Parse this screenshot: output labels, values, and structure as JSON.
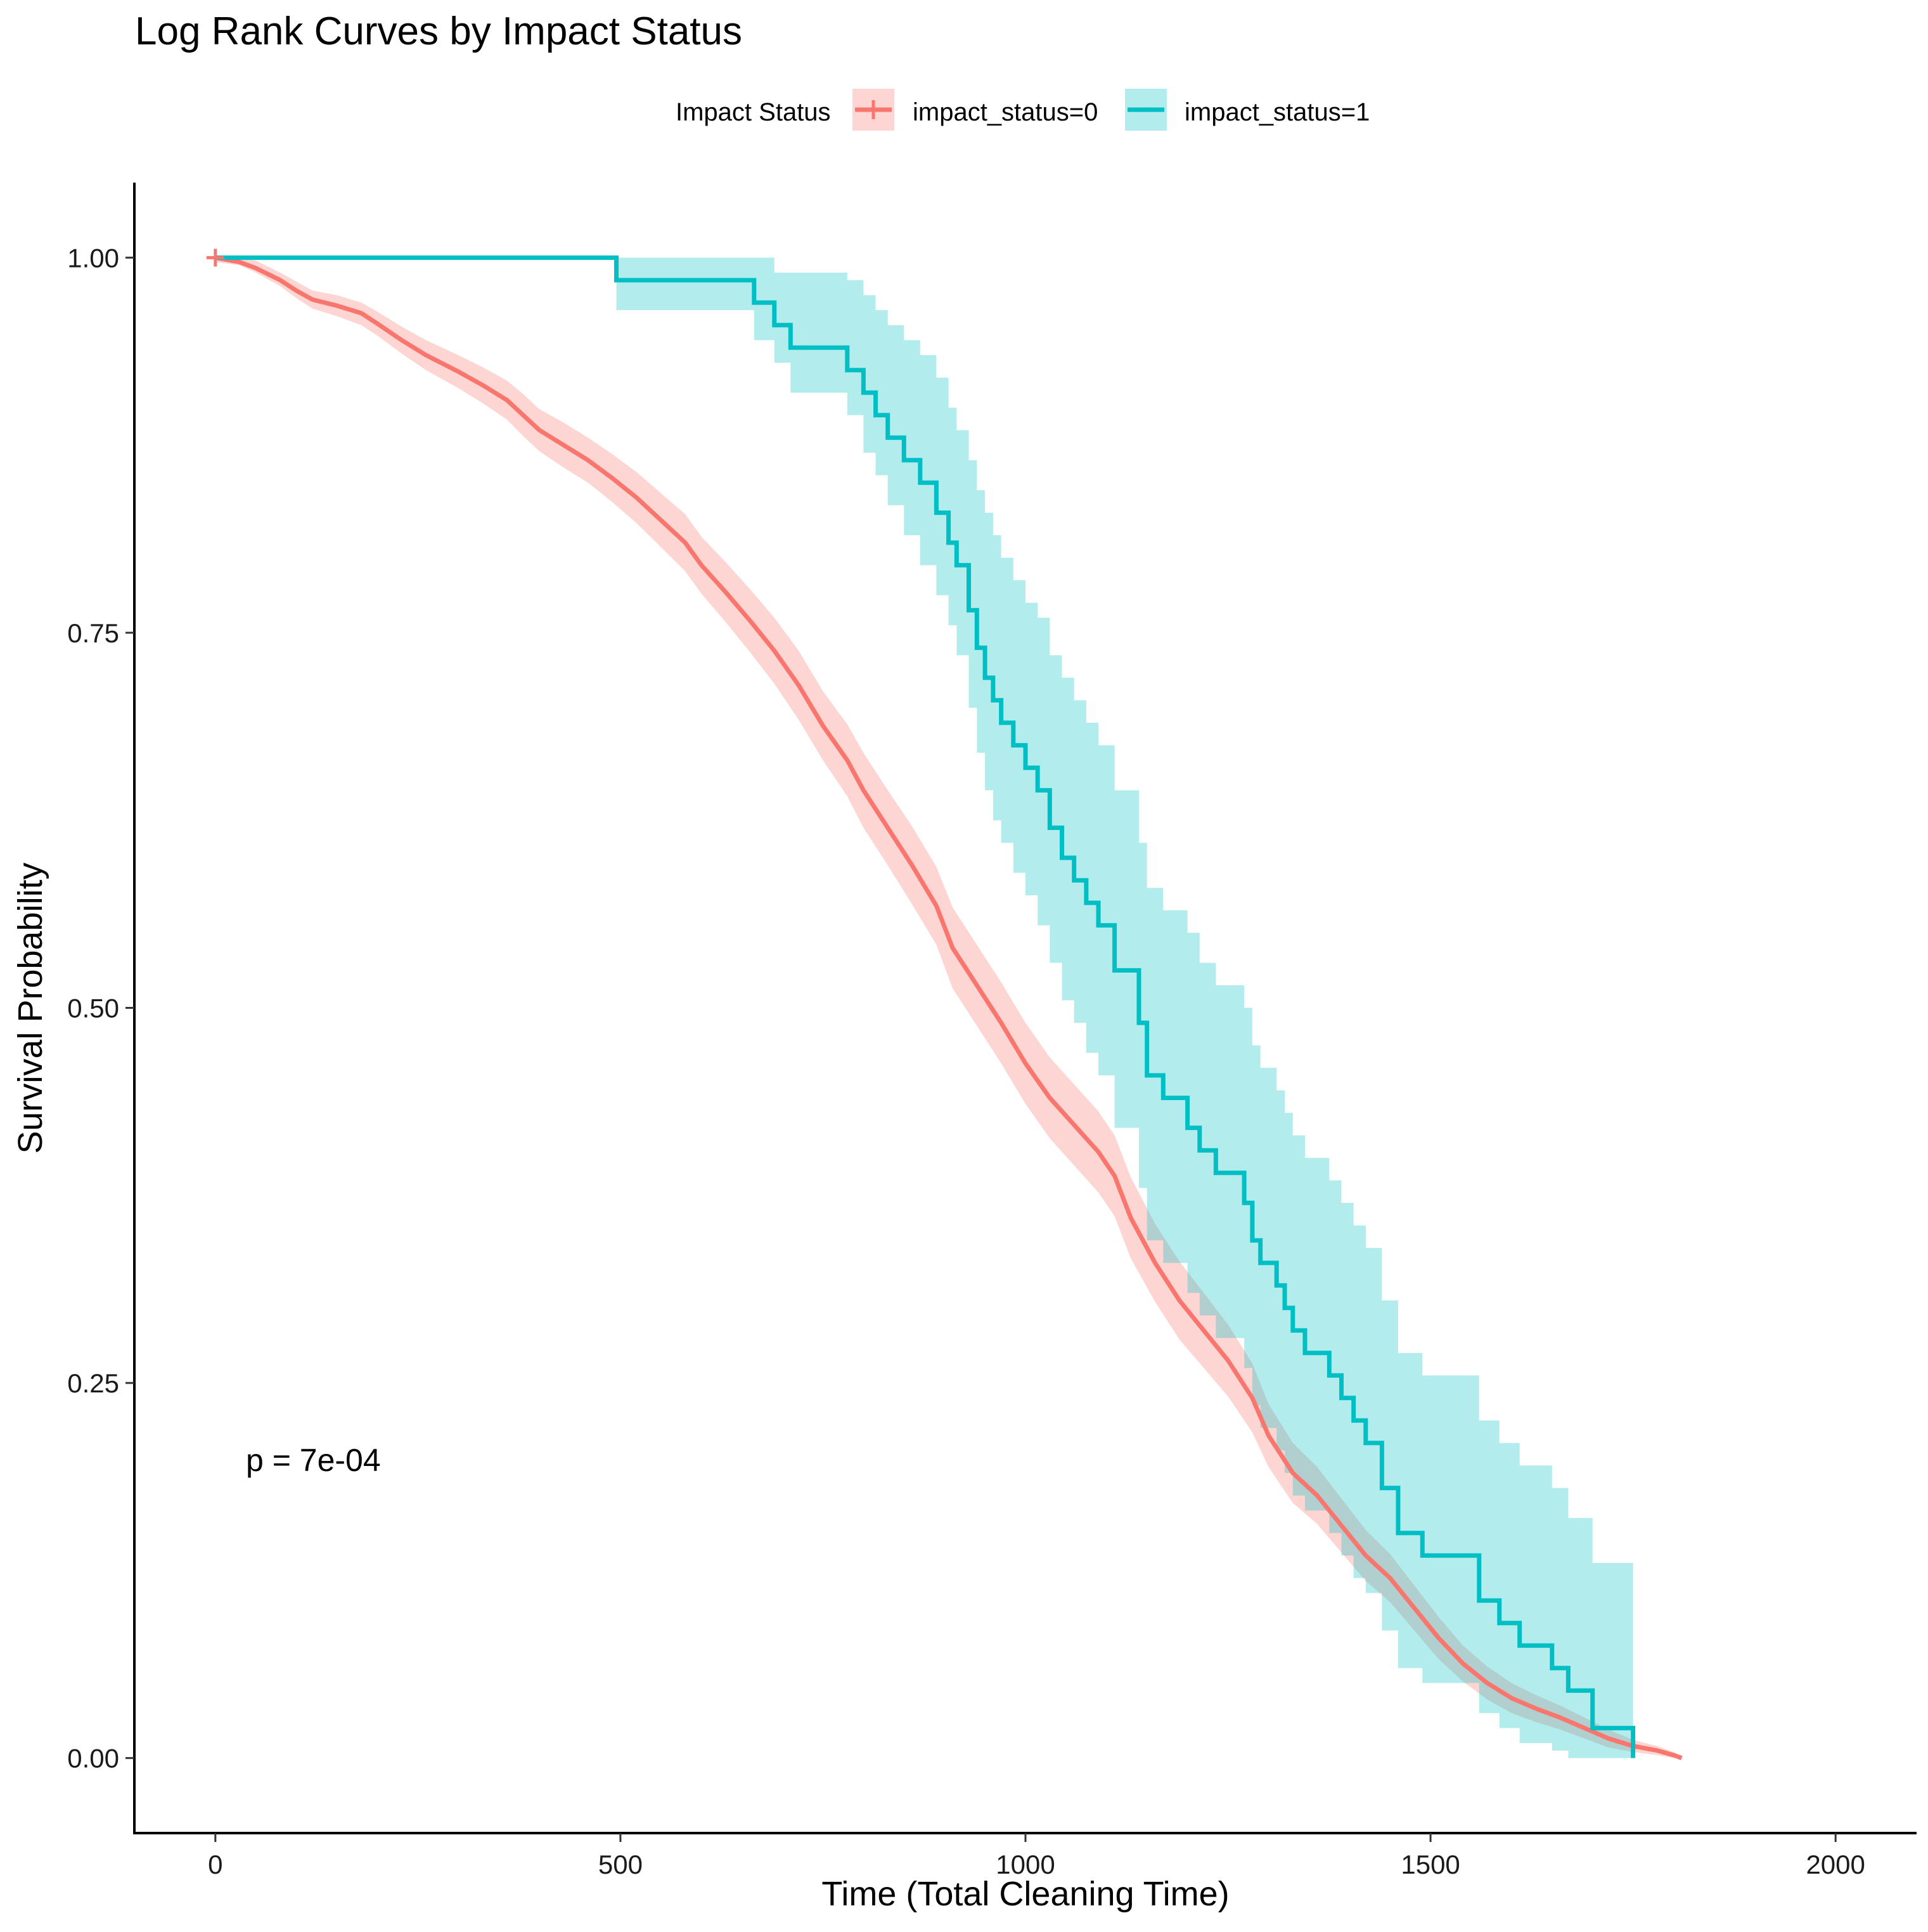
{
  "chart_data": {
    "type": "line",
    "subtype": "kaplan-meier step curves with confidence bands",
    "title": "Log Rank Curves by Impact Status",
    "xlabel": "Time (Total Cleaning Time)",
    "ylabel": "Survival Probability",
    "xlim": [
      -100,
      2100
    ],
    "ylim": [
      -0.05,
      1.05
    ],
    "x_ticks": [
      0,
      500,
      1000,
      1500,
      2000
    ],
    "x_tick_labels": [
      "0",
      "500",
      "1000",
      "1500",
      "2000"
    ],
    "y_ticks": [
      0.0,
      0.25,
      0.5,
      0.75,
      1.0
    ],
    "y_tick_labels": [
      "0.00",
      "0.25",
      "0.50",
      "0.75",
      "1.00"
    ],
    "grid": false,
    "legend": {
      "title": "Impact Status",
      "position": "top"
    },
    "annotation": "p = 7e-04",
    "colors": {
      "series0": "#F8766D",
      "series1": "#00BFC4"
    },
    "series": [
      {
        "name": "impact_status=0",
        "color": "#F8766D",
        "censor_mark": [
          0,
          1.0
        ],
        "points": [
          [
            0,
            1.0
          ],
          [
            30,
            0.997
          ],
          [
            50,
            0.993
          ],
          [
            80,
            0.985
          ],
          [
            100,
            0.978
          ],
          [
            120,
            0.972
          ],
          [
            150,
            0.968
          ],
          [
            180,
            0.963
          ],
          [
            200,
            0.956
          ],
          [
            230,
            0.945
          ],
          [
            260,
            0.935
          ],
          [
            300,
            0.924
          ],
          [
            330,
            0.915
          ],
          [
            360,
            0.905
          ],
          [
            380,
            0.895
          ],
          [
            400,
            0.885
          ],
          [
            430,
            0.875
          ],
          [
            460,
            0.865
          ],
          [
            490,
            0.853
          ],
          [
            520,
            0.84
          ],
          [
            550,
            0.825
          ],
          [
            580,
            0.81
          ],
          [
            600,
            0.795
          ],
          [
            630,
            0.777
          ],
          [
            660,
            0.758
          ],
          [
            690,
            0.738
          ],
          [
            720,
            0.715
          ],
          [
            750,
            0.688
          ],
          [
            780,
            0.665
          ],
          [
            800,
            0.645
          ],
          [
            830,
            0.62
          ],
          [
            860,
            0.595
          ],
          [
            890,
            0.568
          ],
          [
            910,
            0.54
          ],
          [
            940,
            0.515
          ],
          [
            970,
            0.49
          ],
          [
            1000,
            0.463
          ],
          [
            1030,
            0.44
          ],
          [
            1060,
            0.422
          ],
          [
            1090,
            0.404
          ],
          [
            1110,
            0.388
          ],
          [
            1130,
            0.36
          ],
          [
            1160,
            0.33
          ],
          [
            1190,
            0.305
          ],
          [
            1220,
            0.285
          ],
          [
            1250,
            0.265
          ],
          [
            1280,
            0.24
          ],
          [
            1300,
            0.215
          ],
          [
            1330,
            0.19
          ],
          [
            1360,
            0.175
          ],
          [
            1390,
            0.155
          ],
          [
            1420,
            0.135
          ],
          [
            1450,
            0.12
          ],
          [
            1480,
            0.1
          ],
          [
            1510,
            0.08
          ],
          [
            1540,
            0.063
          ],
          [
            1570,
            0.05
          ],
          [
            1600,
            0.04
          ],
          [
            1630,
            0.033
          ],
          [
            1660,
            0.027
          ],
          [
            1690,
            0.02
          ],
          [
            1720,
            0.013
          ],
          [
            1750,
            0.008
          ],
          [
            1780,
            0.005
          ],
          [
            1800,
            0.002
          ],
          [
            1810,
            0.0
          ]
        ],
        "lower": [
          0.997,
          0.995,
          0.99,
          0.981,
          0.973,
          0.966,
          0.961,
          0.955,
          0.948,
          0.936,
          0.925,
          0.913,
          0.903,
          0.892,
          0.881,
          0.871,
          0.86,
          0.85,
          0.837,
          0.823,
          0.807,
          0.791,
          0.776,
          0.757,
          0.737,
          0.716,
          0.692,
          0.665,
          0.641,
          0.62,
          0.595,
          0.569,
          0.542,
          0.513,
          0.488,
          0.463,
          0.436,
          0.413,
          0.395,
          0.377,
          0.361,
          0.333,
          0.304,
          0.279,
          0.26,
          0.241,
          0.217,
          0.194,
          0.17,
          0.156,
          0.137,
          0.118,
          0.104,
          0.085,
          0.066,
          0.051,
          0.039,
          0.03,
          0.024,
          0.019,
          0.013,
          0.007,
          0.004,
          0.002,
          0.0,
          0.0
        ],
        "upper": [
          1.0,
          1.0,
          0.998,
          0.99,
          0.984,
          0.978,
          0.975,
          0.97,
          0.964,
          0.954,
          0.945,
          0.935,
          0.927,
          0.918,
          0.909,
          0.899,
          0.89,
          0.88,
          0.869,
          0.857,
          0.843,
          0.829,
          0.814,
          0.797,
          0.779,
          0.76,
          0.738,
          0.711,
          0.689,
          0.67,
          0.645,
          0.621,
          0.594,
          0.567,
          0.542,
          0.517,
          0.49,
          0.467,
          0.449,
          0.431,
          0.415,
          0.387,
          0.356,
          0.331,
          0.31,
          0.289,
          0.263,
          0.236,
          0.21,
          0.194,
          0.173,
          0.152,
          0.136,
          0.115,
          0.094,
          0.075,
          0.061,
          0.05,
          0.042,
          0.035,
          0.027,
          0.019,
          0.012,
          0.008,
          0.004,
          0.001
        ]
      },
      {
        "name": "impact_status=1",
        "color": "#00BFC4",
        "points": [
          [
            0,
            1.0
          ],
          [
            495,
            1.0
          ],
          [
            495,
            0.985
          ],
          [
            665,
            0.985
          ],
          [
            665,
            0.97
          ],
          [
            690,
            0.97
          ],
          [
            690,
            0.955
          ],
          [
            710,
            0.955
          ],
          [
            710,
            0.94
          ],
          [
            780,
            0.94
          ],
          [
            780,
            0.925
          ],
          [
            800,
            0.925
          ],
          [
            800,
            0.91
          ],
          [
            815,
            0.91
          ],
          [
            815,
            0.895
          ],
          [
            830,
            0.895
          ],
          [
            830,
            0.88
          ],
          [
            850,
            0.88
          ],
          [
            850,
            0.865
          ],
          [
            870,
            0.865
          ],
          [
            870,
            0.85
          ],
          [
            890,
            0.85
          ],
          [
            890,
            0.83
          ],
          [
            905,
            0.83
          ],
          [
            905,
            0.81
          ],
          [
            915,
            0.81
          ],
          [
            915,
            0.795
          ],
          [
            930,
            0.795
          ],
          [
            930,
            0.765
          ],
          [
            940,
            0.765
          ],
          [
            940,
            0.74
          ],
          [
            950,
            0.74
          ],
          [
            950,
            0.72
          ],
          [
            960,
            0.72
          ],
          [
            960,
            0.705
          ],
          [
            970,
            0.705
          ],
          [
            970,
            0.69
          ],
          [
            985,
            0.69
          ],
          [
            985,
            0.675
          ],
          [
            1000,
            0.675
          ],
          [
            1000,
            0.66
          ],
          [
            1015,
            0.66
          ],
          [
            1015,
            0.645
          ],
          [
            1030,
            0.645
          ],
          [
            1030,
            0.62
          ],
          [
            1045,
            0.62
          ],
          [
            1045,
            0.6
          ],
          [
            1060,
            0.6
          ],
          [
            1060,
            0.585
          ],
          [
            1075,
            0.585
          ],
          [
            1075,
            0.57
          ],
          [
            1090,
            0.57
          ],
          [
            1090,
            0.555
          ],
          [
            1110,
            0.555
          ],
          [
            1110,
            0.525
          ],
          [
            1140,
            0.525
          ],
          [
            1140,
            0.49
          ],
          [
            1150,
            0.49
          ],
          [
            1150,
            0.455
          ],
          [
            1170,
            0.455
          ],
          [
            1170,
            0.44
          ],
          [
            1200,
            0.44
          ],
          [
            1200,
            0.42
          ],
          [
            1215,
            0.42
          ],
          [
            1215,
            0.405
          ],
          [
            1235,
            0.405
          ],
          [
            1235,
            0.39
          ],
          [
            1270,
            0.39
          ],
          [
            1270,
            0.37
          ],
          [
            1280,
            0.37
          ],
          [
            1280,
            0.345
          ],
          [
            1290,
            0.345
          ],
          [
            1290,
            0.33
          ],
          [
            1310,
            0.33
          ],
          [
            1310,
            0.315
          ],
          [
            1320,
            0.315
          ],
          [
            1320,
            0.3
          ],
          [
            1330,
            0.3
          ],
          [
            1330,
            0.285
          ],
          [
            1345,
            0.285
          ],
          [
            1345,
            0.27
          ],
          [
            1375,
            0.27
          ],
          [
            1375,
            0.255
          ],
          [
            1390,
            0.255
          ],
          [
            1390,
            0.24
          ],
          [
            1405,
            0.24
          ],
          [
            1405,
            0.225
          ],
          [
            1420,
            0.225
          ],
          [
            1420,
            0.21
          ],
          [
            1440,
            0.21
          ],
          [
            1440,
            0.18
          ],
          [
            1460,
            0.18
          ],
          [
            1460,
            0.15
          ],
          [
            1490,
            0.15
          ],
          [
            1490,
            0.135
          ],
          [
            1560,
            0.135
          ],
          [
            1560,
            0.105
          ],
          [
            1585,
            0.105
          ],
          [
            1585,
            0.09
          ],
          [
            1610,
            0.09
          ],
          [
            1610,
            0.075
          ],
          [
            1650,
            0.075
          ],
          [
            1650,
            0.06
          ],
          [
            1670,
            0.06
          ],
          [
            1670,
            0.045
          ],
          [
            1700,
            0.045
          ],
          [
            1700,
            0.02
          ],
          [
            1750,
            0.02
          ],
          [
            1750,
            0.0
          ]
        ],
        "band": [
          [
            0,
            1.0,
            1.0
          ],
          [
            495,
            0.965,
            1.0
          ],
          [
            665,
            0.945,
            1.0
          ],
          [
            690,
            0.93,
            0.99
          ],
          [
            710,
            0.91,
            0.99
          ],
          [
            780,
            0.895,
            0.985
          ],
          [
            800,
            0.87,
            0.975
          ],
          [
            815,
            0.855,
            0.965
          ],
          [
            830,
            0.835,
            0.955
          ],
          [
            850,
            0.815,
            0.945
          ],
          [
            870,
            0.795,
            0.935
          ],
          [
            890,
            0.775,
            0.92
          ],
          [
            905,
            0.755,
            0.9
          ],
          [
            915,
            0.735,
            0.885
          ],
          [
            930,
            0.7,
            0.865
          ],
          [
            940,
            0.67,
            0.845
          ],
          [
            950,
            0.645,
            0.83
          ],
          [
            960,
            0.625,
            0.815
          ],
          [
            970,
            0.61,
            0.8
          ],
          [
            985,
            0.59,
            0.785
          ],
          [
            1000,
            0.575,
            0.77
          ],
          [
            1015,
            0.555,
            0.76
          ],
          [
            1030,
            0.53,
            0.735
          ],
          [
            1045,
            0.505,
            0.72
          ],
          [
            1060,
            0.49,
            0.705
          ],
          [
            1075,
            0.47,
            0.69
          ],
          [
            1090,
            0.455,
            0.675
          ],
          [
            1110,
            0.42,
            0.645
          ],
          [
            1140,
            0.38,
            0.61
          ],
          [
            1150,
            0.345,
            0.58
          ],
          [
            1170,
            0.33,
            0.565
          ],
          [
            1200,
            0.31,
            0.55
          ],
          [
            1215,
            0.295,
            0.53
          ],
          [
            1235,
            0.28,
            0.515
          ],
          [
            1270,
            0.26,
            0.5
          ],
          [
            1280,
            0.235,
            0.475
          ],
          [
            1290,
            0.22,
            0.46
          ],
          [
            1310,
            0.205,
            0.445
          ],
          [
            1320,
            0.19,
            0.43
          ],
          [
            1330,
            0.175,
            0.415
          ],
          [
            1345,
            0.165,
            0.4
          ],
          [
            1375,
            0.15,
            0.385
          ],
          [
            1390,
            0.135,
            0.37
          ],
          [
            1405,
            0.12,
            0.355
          ],
          [
            1420,
            0.11,
            0.34
          ],
          [
            1440,
            0.085,
            0.305
          ],
          [
            1460,
            0.06,
            0.27
          ],
          [
            1490,
            0.05,
            0.255
          ],
          [
            1560,
            0.03,
            0.225
          ],
          [
            1585,
            0.02,
            0.21
          ],
          [
            1610,
            0.01,
            0.195
          ],
          [
            1650,
            0.005,
            0.18
          ],
          [
            1670,
            0.0,
            0.16
          ],
          [
            1700,
            0.0,
            0.13
          ],
          [
            1750,
            0.0,
            0.1
          ]
        ]
      }
    ]
  }
}
